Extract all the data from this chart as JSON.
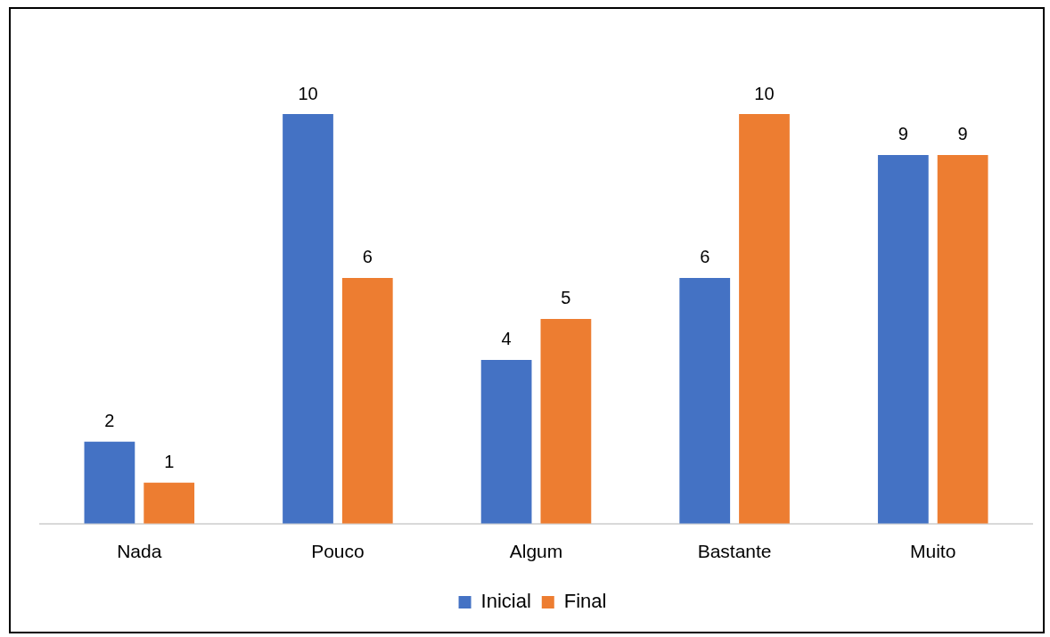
{
  "chart_data": {
    "type": "bar",
    "categories": [
      "Nada",
      "Pouco",
      "Algum",
      "Bastante",
      "Muito"
    ],
    "series": [
      {
        "name": "Inicial",
        "color": "#4472c4",
        "values": [
          2,
          10,
          4,
          6,
          9
        ]
      },
      {
        "name": "Final",
        "color": "#ed7d31",
        "values": [
          1,
          6,
          5,
          10,
          9
        ]
      }
    ],
    "data_labels": true,
    "legend": "bottom",
    "grid": false
  }
}
